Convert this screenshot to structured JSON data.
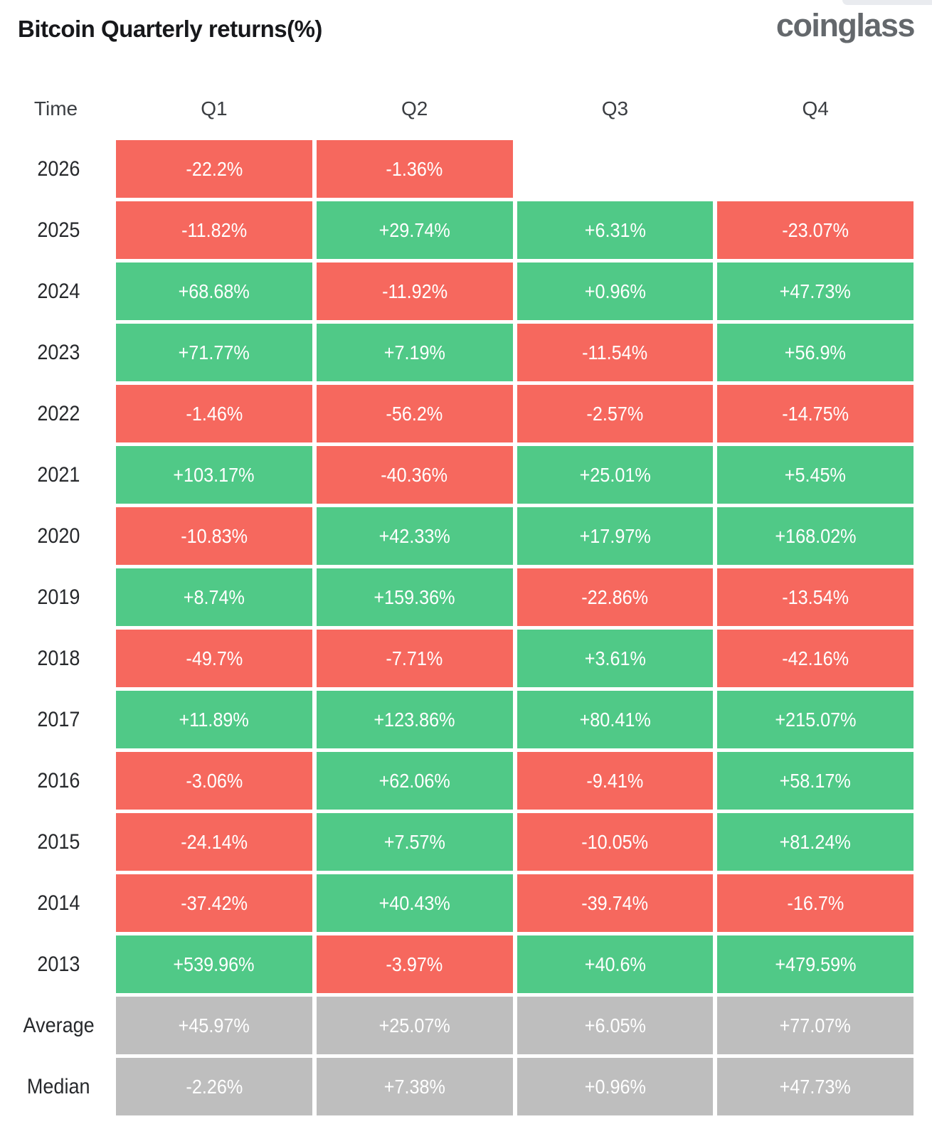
{
  "header": {
    "title": "Bitcoin Quarterly returns(%)",
    "logo": "coinglass"
  },
  "colors": {
    "positive": "#50C987",
    "negative": "#F6685E",
    "summary": "#BEBEBE"
  },
  "table": {
    "headers": [
      "Time",
      "Q1",
      "Q2",
      "Q3",
      "Q4"
    ],
    "rows": [
      {
        "label": "2026",
        "cells": [
          {
            "text": "-22.2%",
            "sign": "neg"
          },
          {
            "text": "-1.36%",
            "sign": "neg"
          },
          null,
          null
        ]
      },
      {
        "label": "2025",
        "cells": [
          {
            "text": "-11.82%",
            "sign": "neg"
          },
          {
            "text": "+29.74%",
            "sign": "pos"
          },
          {
            "text": "+6.31%",
            "sign": "pos"
          },
          {
            "text": "-23.07%",
            "sign": "neg"
          }
        ]
      },
      {
        "label": "2024",
        "cells": [
          {
            "text": "+68.68%",
            "sign": "pos"
          },
          {
            "text": "-11.92%",
            "sign": "neg"
          },
          {
            "text": "+0.96%",
            "sign": "pos"
          },
          {
            "text": "+47.73%",
            "sign": "pos"
          }
        ]
      },
      {
        "label": "2023",
        "cells": [
          {
            "text": "+71.77%",
            "sign": "pos"
          },
          {
            "text": "+7.19%",
            "sign": "pos"
          },
          {
            "text": "-11.54%",
            "sign": "neg"
          },
          {
            "text": "+56.9%",
            "sign": "pos"
          }
        ]
      },
      {
        "label": "2022",
        "cells": [
          {
            "text": "-1.46%",
            "sign": "neg"
          },
          {
            "text": "-56.2%",
            "sign": "neg"
          },
          {
            "text": "-2.57%",
            "sign": "neg"
          },
          {
            "text": "-14.75%",
            "sign": "neg"
          }
        ]
      },
      {
        "label": "2021",
        "cells": [
          {
            "text": "+103.17%",
            "sign": "pos"
          },
          {
            "text": "-40.36%",
            "sign": "neg"
          },
          {
            "text": "+25.01%",
            "sign": "pos"
          },
          {
            "text": "+5.45%",
            "sign": "pos"
          }
        ]
      },
      {
        "label": "2020",
        "cells": [
          {
            "text": "-10.83%",
            "sign": "neg"
          },
          {
            "text": "+42.33%",
            "sign": "pos"
          },
          {
            "text": "+17.97%",
            "sign": "pos"
          },
          {
            "text": "+168.02%",
            "sign": "pos"
          }
        ]
      },
      {
        "label": "2019",
        "cells": [
          {
            "text": "+8.74%",
            "sign": "pos"
          },
          {
            "text": "+159.36%",
            "sign": "pos"
          },
          {
            "text": "-22.86%",
            "sign": "neg"
          },
          {
            "text": "-13.54%",
            "sign": "neg"
          }
        ]
      },
      {
        "label": "2018",
        "cells": [
          {
            "text": "-49.7%",
            "sign": "neg"
          },
          {
            "text": "-7.71%",
            "sign": "neg"
          },
          {
            "text": "+3.61%",
            "sign": "pos"
          },
          {
            "text": "-42.16%",
            "sign": "neg"
          }
        ]
      },
      {
        "label": "2017",
        "cells": [
          {
            "text": "+11.89%",
            "sign": "pos"
          },
          {
            "text": "+123.86%",
            "sign": "pos"
          },
          {
            "text": "+80.41%",
            "sign": "pos"
          },
          {
            "text": "+215.07%",
            "sign": "pos"
          }
        ]
      },
      {
        "label": "2016",
        "cells": [
          {
            "text": "-3.06%",
            "sign": "neg"
          },
          {
            "text": "+62.06%",
            "sign": "pos"
          },
          {
            "text": "-9.41%",
            "sign": "neg"
          },
          {
            "text": "+58.17%",
            "sign": "pos"
          }
        ]
      },
      {
        "label": "2015",
        "cells": [
          {
            "text": "-24.14%",
            "sign": "neg"
          },
          {
            "text": "+7.57%",
            "sign": "pos"
          },
          {
            "text": "-10.05%",
            "sign": "neg"
          },
          {
            "text": "+81.24%",
            "sign": "pos"
          }
        ]
      },
      {
        "label": "2014",
        "cells": [
          {
            "text": "-37.42%",
            "sign": "neg"
          },
          {
            "text": "+40.43%",
            "sign": "pos"
          },
          {
            "text": "-39.74%",
            "sign": "neg"
          },
          {
            "text": "-16.7%",
            "sign": "neg"
          }
        ]
      },
      {
        "label": "2013",
        "cells": [
          {
            "text": "+539.96%",
            "sign": "pos"
          },
          {
            "text": "-3.97%",
            "sign": "neg"
          },
          {
            "text": "+40.6%",
            "sign": "pos"
          },
          {
            "text": "+479.59%",
            "sign": "pos"
          }
        ]
      },
      {
        "label": "Average",
        "cells": [
          {
            "text": "+45.97%",
            "sign": "avg"
          },
          {
            "text": "+25.07%",
            "sign": "avg"
          },
          {
            "text": "+6.05%",
            "sign": "avg"
          },
          {
            "text": "+77.07%",
            "sign": "avg"
          }
        ]
      },
      {
        "label": "Median",
        "cells": [
          {
            "text": "-2.26%",
            "sign": "avg"
          },
          {
            "text": "+7.38%",
            "sign": "avg"
          },
          {
            "text": "+0.96%",
            "sign": "avg"
          },
          {
            "text": "+47.73%",
            "sign": "avg"
          }
        ]
      }
    ]
  },
  "chart_data": {
    "type": "table",
    "title": "Bitcoin Quarterly returns(%)",
    "columns": [
      "Q1",
      "Q2",
      "Q3",
      "Q4"
    ],
    "rows": [
      "2026",
      "2025",
      "2024",
      "2023",
      "2022",
      "2021",
      "2020",
      "2019",
      "2018",
      "2017",
      "2016",
      "2015",
      "2014",
      "2013",
      "Average",
      "Median"
    ],
    "values": [
      [
        -22.2,
        -1.36,
        null,
        null
      ],
      [
        -11.82,
        29.74,
        6.31,
        -23.07
      ],
      [
        68.68,
        -11.92,
        0.96,
        47.73
      ],
      [
        71.77,
        7.19,
        -11.54,
        56.9
      ],
      [
        -1.46,
        -56.2,
        -2.57,
        -14.75
      ],
      [
        103.17,
        -40.36,
        25.01,
        5.45
      ],
      [
        -10.83,
        42.33,
        17.97,
        168.02
      ],
      [
        8.74,
        159.36,
        -22.86,
        -13.54
      ],
      [
        -49.7,
        -7.71,
        3.61,
        -42.16
      ],
      [
        11.89,
        123.86,
        80.41,
        215.07
      ],
      [
        -3.06,
        62.06,
        -9.41,
        58.17
      ],
      [
        -24.14,
        7.57,
        -10.05,
        81.24
      ],
      [
        -37.42,
        40.43,
        -39.74,
        -16.7
      ],
      [
        539.96,
        -3.97,
        40.6,
        479.59
      ],
      [
        45.97,
        25.07,
        6.05,
        77.07
      ],
      [
        -2.26,
        7.38,
        0.96,
        47.73
      ]
    ],
    "color_rule": "cell green when positive, red when negative, gray for Average/Median summary rows",
    "units": "percent"
  }
}
